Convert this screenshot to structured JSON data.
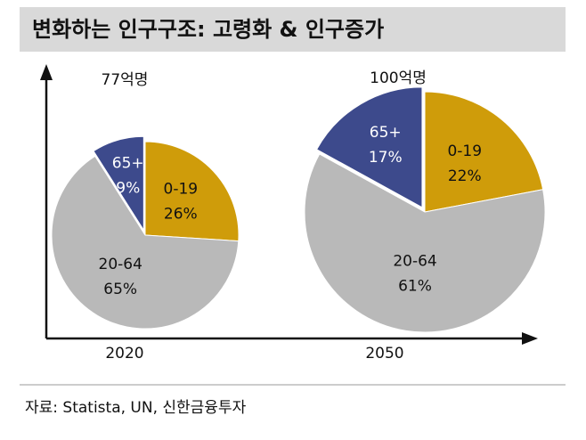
{
  "title": "변화하는 인구구조: 고령화 & 인구증가",
  "source": "자료: Statista, UN, 신한금융투자",
  "chart_data": [
    {
      "type": "pie",
      "title": "2020",
      "total": "77억명",
      "categories": [
        "0-19",
        "20-64",
        "65+"
      ],
      "values": [
        26,
        65,
        9
      ],
      "value_labels": [
        "26%",
        "65%",
        "9%"
      ],
      "colors": [
        "#cf9c0a",
        "#b9b9b9",
        "#3d4a8c"
      ]
    },
    {
      "type": "pie",
      "title": "2050",
      "total": "100억명",
      "categories": [
        "0-19",
        "20-64",
        "65+"
      ],
      "values": [
        22,
        61,
        17
      ],
      "value_labels": [
        "22%",
        "61%",
        "17%"
      ],
      "colors": [
        "#cf9c0a",
        "#b9b9b9",
        "#3d4a8c"
      ]
    }
  ]
}
